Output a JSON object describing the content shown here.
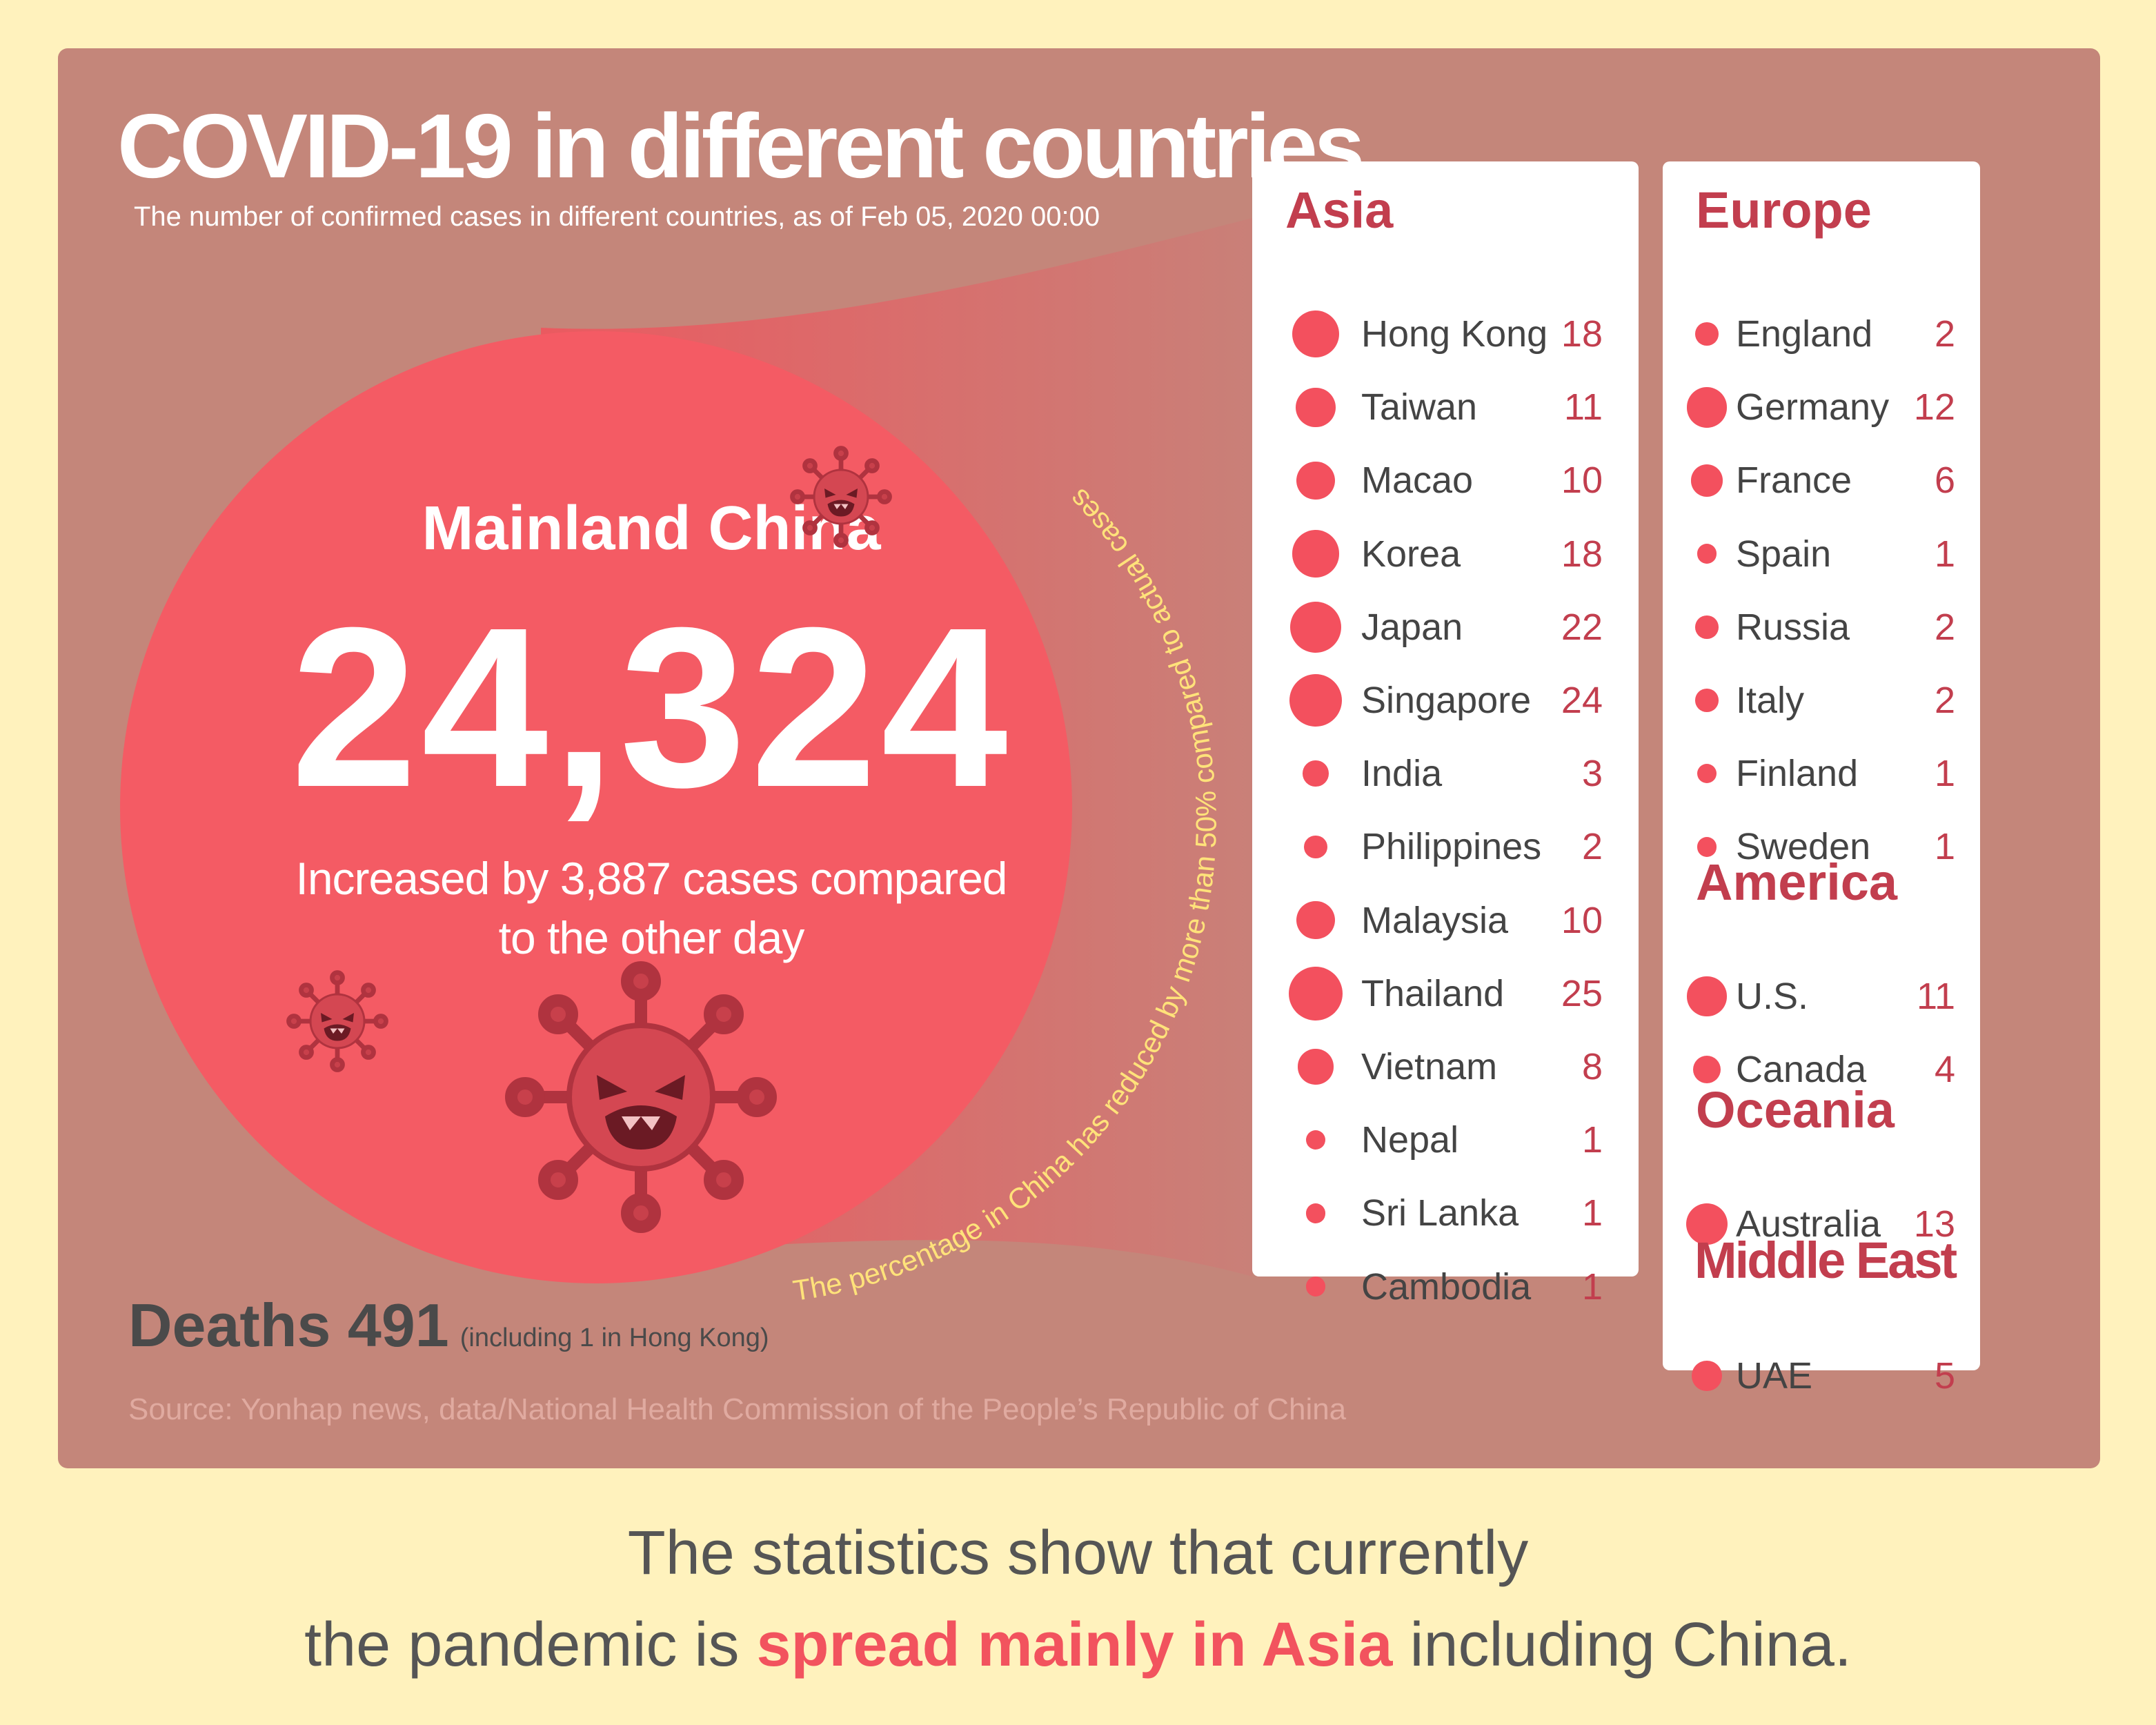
{
  "title": "COVID-19 in different countries",
  "subtitle": "The number of confirmed cases in different countries, as of Feb 05, 2020 00:00",
  "china": {
    "name": "Mainland China",
    "count": "24,324",
    "increase_line1": "Increased by 3,887 cases compared",
    "increase_line2": "to the other day"
  },
  "arc_note": "The percentage in China has reduced by more than 50% compared to actual cases",
  "deaths": {
    "label": "Deaths 491",
    "note": "(including 1 in Hong Kong)"
  },
  "source": "Source: Yonhap news, data/National Health Commission of the People’s Republic of China",
  "regions": {
    "asia": {
      "title": "Asia",
      "countries": [
        {
          "name": "Hong Kong",
          "value": 18
        },
        {
          "name": "Taiwan",
          "value": 11
        },
        {
          "name": "Macao",
          "value": 10
        },
        {
          "name": "Korea",
          "value": 18
        },
        {
          "name": "Japan",
          "value": 22
        },
        {
          "name": "Singapore",
          "value": 24
        },
        {
          "name": "India",
          "value": 3
        },
        {
          "name": "Philippines",
          "value": 2
        },
        {
          "name": "Malaysia",
          "value": 10
        },
        {
          "name": "Thailand",
          "value": 25
        },
        {
          "name": "Vietnam",
          "value": 8
        },
        {
          "name": "Nepal",
          "value": 1
        },
        {
          "name": "Sri Lanka",
          "value": 1
        },
        {
          "name": "Cambodia",
          "value": 1
        }
      ]
    },
    "europe": {
      "title": "Europe",
      "countries": [
        {
          "name": "England",
          "value": 2
        },
        {
          "name": "Germany",
          "value": 12
        },
        {
          "name": "France",
          "value": 6
        },
        {
          "name": "Spain",
          "value": 1
        },
        {
          "name": "Russia",
          "value": 2
        },
        {
          "name": "Italy",
          "value": 2
        },
        {
          "name": "Finland",
          "value": 1
        },
        {
          "name": "Sweden",
          "value": 1
        }
      ]
    },
    "america": {
      "title": "America",
      "countries": [
        {
          "name": "U.S.",
          "value": 11
        },
        {
          "name": "Canada",
          "value": 4
        }
      ]
    },
    "oceania": {
      "title": "Oceania",
      "countries": [
        {
          "name": "Australia",
          "value": 13
        }
      ]
    },
    "middle_east": {
      "title": "Middle East",
      "countries": [
        {
          "name": "UAE",
          "value": 5
        }
      ]
    }
  },
  "bottom": {
    "line1": "The statistics show that currently",
    "line2_pre": "the pandemic is ",
    "line2_highlight": "spread mainly in Asia",
    "line2_post": " including China."
  },
  "colors": {
    "background": "#fff2bd",
    "panel": "#c4867a",
    "circle": "#f45b64",
    "accent": "#c23e4e",
    "dot": "#f3505e",
    "arc_text": "#ffe27a"
  },
  "icons": [
    "virus-icon"
  ]
}
